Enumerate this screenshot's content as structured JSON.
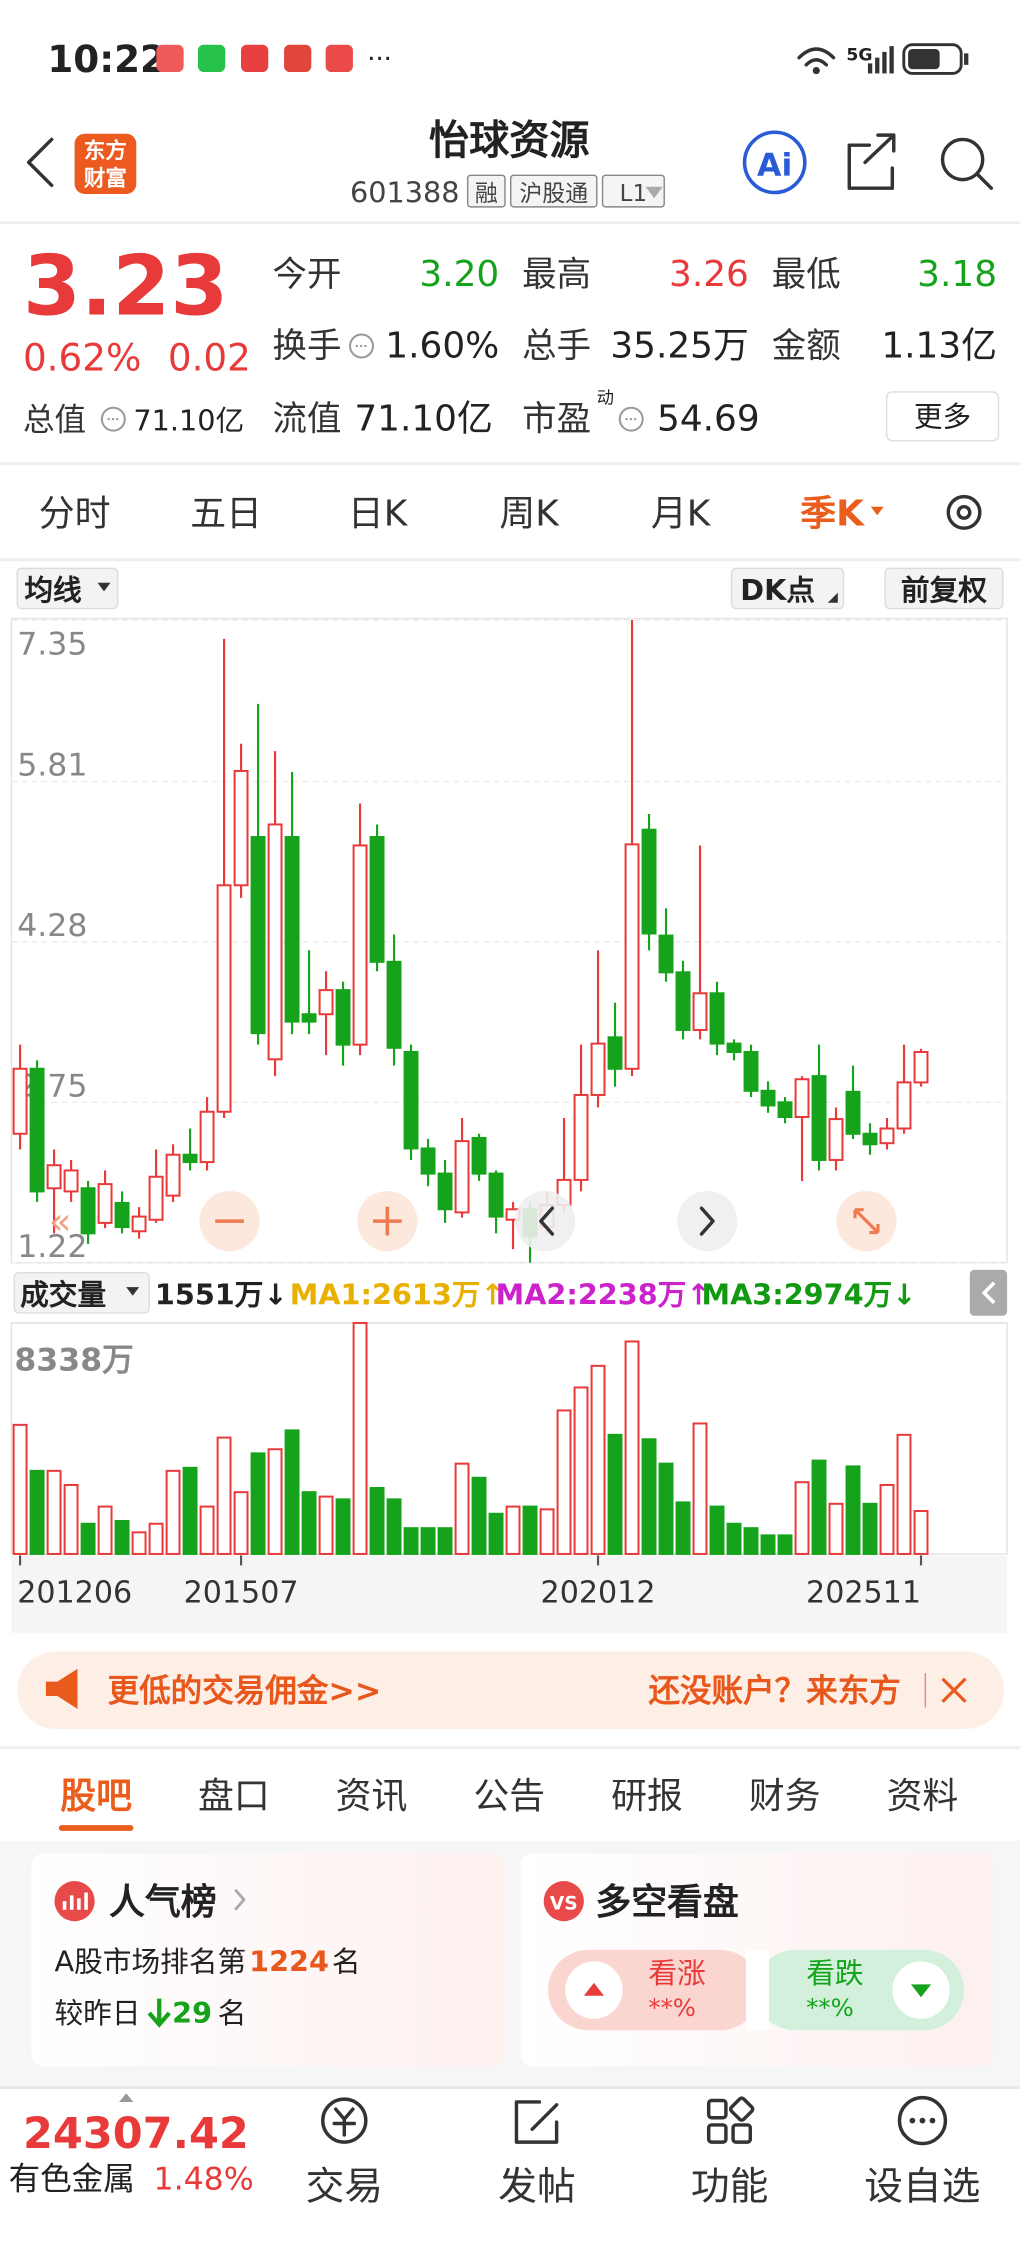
{
  "status_bar": {
    "time": "10:22",
    "more": "···",
    "network": "5G"
  },
  "header": {
    "logo": [
      "东方",
      "财富"
    ],
    "title": "怡球资源",
    "code": "601388",
    "tags": [
      "融",
      "沪股通",
      "L1"
    ],
    "ai": "Ai"
  },
  "quote": {
    "price": "3.23",
    "change_percent": "0.62%",
    "change": "0.02",
    "fields": [
      {
        "label": "今开",
        "value": "3.20",
        "color": "#16a31c"
      },
      {
        "label": "最高",
        "value": "3.26",
        "color": "#e83a3a"
      },
      {
        "label": "最低",
        "value": "3.18",
        "color": "#16a31c"
      },
      {
        "label": "换手",
        "value": "1.60%"
      },
      {
        "label": "总手",
        "value": "35.25万"
      },
      {
        "label": "金额",
        "value": "1.13亿"
      },
      {
        "label": "总值",
        "value": "71.10亿"
      },
      {
        "label": "流值",
        "value": "71.10亿"
      },
      {
        "label": "市盈",
        "value": "54.69",
        "superscript": "动"
      }
    ],
    "more": "更多"
  },
  "period_tabs": {
    "items": [
      "分时",
      "五日",
      "日K",
      "周K",
      "月K",
      "季K"
    ],
    "active": 5
  },
  "chart_controls": {
    "indicator": "均线",
    "dk": "DK点",
    "adjust": "前复权"
  },
  "volume_legend": {
    "label": "成交量",
    "current": "1551万↓",
    "ma": [
      {
        "text": "MA1:2613万↑",
        "color": "#e8b000"
      },
      {
        "text": "MA2:2238万↑",
        "color": "#cc22cc"
      },
      {
        "text": "MA3:2974万↓",
        "color": "#119911"
      }
    ]
  },
  "chart_data": [
    {
      "type": "candlestick",
      "up_color": "#e83a3a",
      "down_color": "#16a31c",
      "grid": true,
      "ylim": [
        1.22,
        7.35
      ],
      "yticks": [
        7.35,
        5.81,
        4.28,
        2.75,
        1.22
      ],
      "open": [
        2.45,
        3.07,
        1.93,
        1.9,
        1.93,
        1.6,
        1.79,
        1.52,
        1.63,
        1.86,
        2.25,
        2.18,
        2.66,
        4.82,
        5.28,
        3.16,
        5.28,
        3.59,
        3.59,
        3.82,
        3.3,
        5.28,
        4.09,
        3.23,
        2.31,
        2.07,
        1.7,
        2.41,
        2.07,
        1.63,
        1.73,
        1.56,
        1.77,
        2.01,
        2.82,
        3.37,
        3.07,
        5.35,
        4.34,
        3.99,
        3.44,
        3.79,
        3.31,
        3.23,
        2.86,
        2.75,
        2.61,
        3.0,
        2.2,
        2.85,
        2.45,
        2.36,
        2.5,
        2.94
      ],
      "high": [
        3.3,
        3.15,
        2.3,
        2.2,
        2.0,
        2.1,
        1.9,
        1.75,
        2.3,
        2.35,
        2.5,
        2.8,
        7.17,
        6.17,
        6.55,
        6.1,
        5.9,
        4.2,
        4.0,
        3.9,
        5.6,
        5.4,
        4.35,
        3.3,
        2.4,
        2.2,
        2.6,
        2.45,
        2.1,
        1.8,
        1.8,
        1.9,
        2.6,
        3.3,
        4.2,
        3.7,
        7.35,
        5.5,
        4.6,
        4.1,
        5.2,
        3.9,
        3.35,
        3.3,
        2.95,
        2.8,
        3.0,
        3.3,
        2.7,
        3.1,
        2.55,
        2.6,
        3.3,
        3.26
      ],
      "low": [
        2.3,
        1.8,
        1.5,
        1.8,
        1.4,
        1.55,
        1.5,
        1.45,
        1.6,
        1.8,
        2.1,
        2.1,
        2.6,
        4.7,
        3.3,
        3.0,
        3.4,
        3.4,
        3.2,
        3.1,
        3.2,
        4.0,
        3.1,
        2.2,
        1.95,
        1.6,
        1.65,
        2.0,
        1.5,
        1.35,
        1.22,
        1.5,
        1.7,
        1.9,
        2.7,
        2.9,
        3.0,
        4.2,
        3.9,
        3.35,
        3.35,
        3.2,
        3.15,
        2.8,
        2.65,
        2.55,
        2.0,
        2.1,
        2.1,
        2.4,
        2.25,
        2.3,
        2.45,
        2.9
      ],
      "close": [
        3.07,
        1.9,
        2.15,
        2.1,
        1.5,
        1.97,
        1.56,
        1.66,
        2.04,
        2.25,
        2.18,
        2.66,
        4.82,
        5.91,
        3.41,
        5.4,
        3.52,
        3.52,
        3.82,
        3.3,
        5.2,
        4.09,
        3.27,
        2.31,
        2.07,
        1.73,
        2.38,
        2.07,
        1.66,
        1.73,
        1.47,
        1.77,
        2.01,
        2.82,
        3.31,
        3.07,
        5.21,
        4.36,
        3.99,
        3.44,
        3.79,
        3.31,
        3.23,
        2.86,
        2.72,
        2.61,
        2.97,
        2.2,
        2.59,
        2.45,
        2.35,
        2.5,
        2.94,
        3.23
      ]
    },
    {
      "type": "bar",
      "ylim": [
        0,
        8338
      ],
      "yticks": [
        {
          "value": 8338,
          "label": "8338万"
        }
      ],
      "categories": [
        "201206",
        null,
        null,
        null,
        null,
        null,
        null,
        null,
        null,
        null,
        null,
        null,
        null,
        "201507",
        null,
        null,
        null,
        null,
        null,
        null,
        null,
        null,
        null,
        null,
        null,
        null,
        null,
        null,
        null,
        null,
        null,
        null,
        null,
        null,
        "202012",
        null,
        null,
        null,
        null,
        null,
        null,
        null,
        null,
        null,
        null,
        null,
        null,
        null,
        null,
        null,
        null,
        null,
        null,
        "202511"
      ],
      "values": [
        4660,
        3000,
        3000,
        2490,
        1090,
        1710,
        1190,
        780,
        1090,
        3000,
        3110,
        1710,
        4200,
        2230,
        3630,
        3780,
        4460,
        2230,
        2070,
        1970,
        8338,
        2380,
        1970,
        930,
        930,
        930,
        3260,
        2750,
        1450,
        1710,
        1710,
        1610,
        5180,
        6010,
        6790,
        4300,
        7670,
        4140,
        3260,
        1860,
        4710,
        1710,
        1090,
        930,
        670,
        670,
        2590,
        3370,
        1810,
        3160,
        1810,
        2490,
        4300,
        1551
      ]
    }
  ],
  "banner": {
    "left": "更低的交易佣金>>",
    "right": "还没账户？来东方"
  },
  "section_tabs": {
    "items": [
      "股吧",
      "盘口",
      "资讯",
      "公告",
      "研报",
      "财务",
      "资料"
    ],
    "active": 0
  },
  "popularity": {
    "title": "人气榜",
    "rank_prefix": "A股市场排名第",
    "rank": "1224",
    "rank_suffix": "名",
    "change_prefix": "较昨日",
    "change": "29",
    "change_suffix": "名"
  },
  "bull_bear": {
    "title": "多空看盘",
    "up": "看涨",
    "up_percent": "**%",
    "down": "看跌",
    "down_percent": "**%"
  },
  "bottom_nav": {
    "index_value": "24307.42",
    "index_name": "有色金属",
    "index_change": "1.48%",
    "items": [
      "交易",
      "发帖",
      "功能",
      "设自选"
    ]
  }
}
